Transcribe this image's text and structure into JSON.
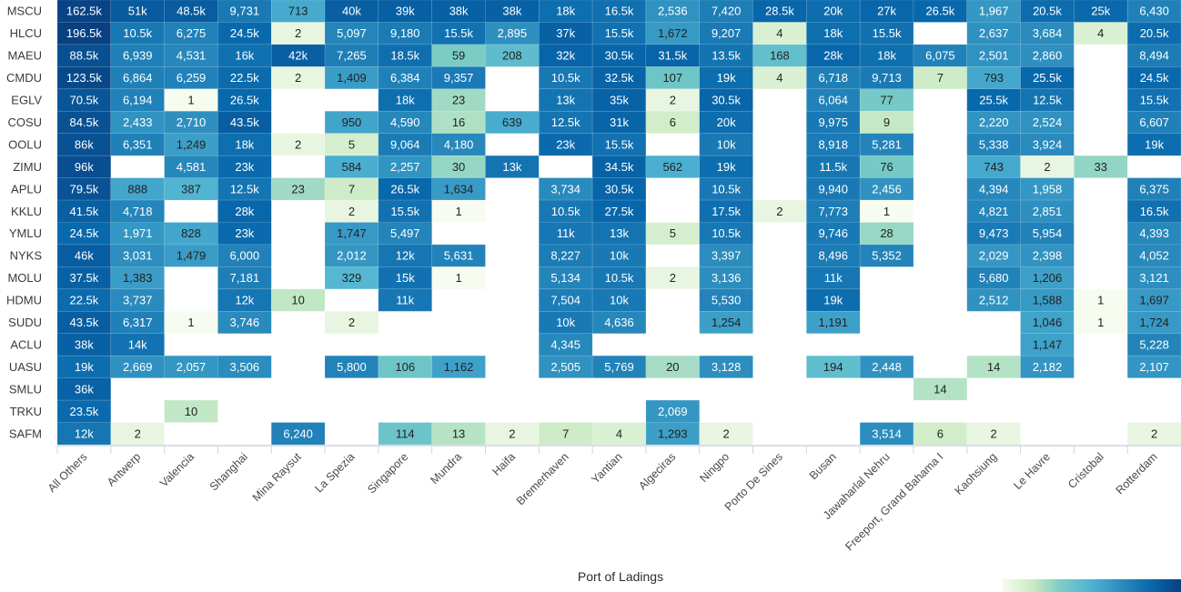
{
  "chart_data": {
    "type": "heatmap",
    "title": "",
    "xlabel": "Port of Ladings",
    "ylabel": "",
    "legend": {
      "type": "color-gradient",
      "placement": "bottom-right",
      "colors": [
        "#f7fcf0",
        "#ccebc5",
        "#7bccc4",
        "#4eb3d3",
        "#2b8cbe",
        "#0868ac",
        "#084081"
      ]
    },
    "columns": [
      "All Others",
      "Antwerp",
      "Valencia",
      "Shanghai",
      "Mina Raysut",
      "La Spezia",
      "Singapore",
      "Mundra",
      "Haifa",
      "Bremerhaven",
      "Yantian",
      "Algeciras",
      "Ningpo",
      "Porto De Sines",
      "Busan",
      "Jawaharlal Nehru",
      "Freeport, Grand Bahama I",
      "Kaohsiung",
      "Le Havre",
      "Cristobal",
      "Rotterdam"
    ],
    "rows": [
      {
        "label": "MSCU",
        "values": [
          "162.5k",
          "51k",
          "48.5k",
          "9,731",
          "713",
          "40k",
          "39k",
          "38k",
          "38k",
          "18k",
          "16.5k",
          "2,536",
          "7,420",
          "28.5k",
          "20k",
          "27k",
          "26.5k",
          "1,967",
          "20.5k",
          "25k",
          "6,430"
        ]
      },
      {
        "label": "HLCU",
        "values": [
          "196.5k",
          "10.5k",
          "6,275",
          "24.5k",
          "2",
          "5,097",
          "9,180",
          "15.5k",
          "2,895",
          "37k",
          "15.5k",
          "1,672",
          "9,207",
          "4",
          "18k",
          "15.5k",
          "",
          "2,637",
          "3,684",
          "4",
          "20.5k"
        ]
      },
      {
        "label": "MAEU",
        "values": [
          "88.5k",
          "6,939",
          "4,531",
          "16k",
          "42k",
          "7,265",
          "18.5k",
          "59",
          "208",
          "32k",
          "30.5k",
          "31.5k",
          "13.5k",
          "168",
          "28k",
          "18k",
          "6,075",
          "2,501",
          "2,860",
          "",
          "8,494"
        ]
      },
      {
        "label": "CMDU",
        "values": [
          "123.5k",
          "6,864",
          "6,259",
          "22.5k",
          "2",
          "1,409",
          "6,384",
          "9,357",
          "",
          "10.5k",
          "32.5k",
          "107",
          "19k",
          "4",
          "6,718",
          "9,713",
          "7",
          "793",
          "25.5k",
          "",
          "24.5k"
        ]
      },
      {
        "label": "EGLV",
        "values": [
          "70.5k",
          "6,194",
          "1",
          "26.5k",
          "",
          "",
          "18k",
          "23",
          "",
          "13k",
          "35k",
          "2",
          "30.5k",
          "",
          "6,064",
          "77",
          "",
          "25.5k",
          "12.5k",
          "",
          "15.5k"
        ]
      },
      {
        "label": "COSU",
        "values": [
          "84.5k",
          "2,433",
          "2,710",
          "43.5k",
          "",
          "950",
          "4,590",
          "16",
          "639",
          "12.5k",
          "31k",
          "6",
          "20k",
          "",
          "9,975",
          "9",
          "",
          "2,220",
          "2,524",
          "",
          "6,607"
        ]
      },
      {
        "label": "OOLU",
        "values": [
          "86k",
          "6,351",
          "1,249",
          "18k",
          "2",
          "5",
          "9,064",
          "4,180",
          "",
          "23k",
          "15.5k",
          "",
          "10k",
          "",
          "8,918",
          "5,281",
          "",
          "5,338",
          "3,924",
          "",
          "19k"
        ]
      },
      {
        "label": "ZIMU",
        "values": [
          "96k",
          "",
          "4,581",
          "23k",
          "",
          "584",
          "2,257",
          "30",
          "13k",
          "",
          "34.5k",
          "562",
          "19k",
          "",
          "11.5k",
          "76",
          "",
          "743",
          "2",
          "33",
          ""
        ]
      },
      {
        "label": "APLU",
        "values": [
          "79.5k",
          "888",
          "387",
          "12.5k",
          "23",
          "7",
          "26.5k",
          "1,634",
          "",
          "3,734",
          "30.5k",
          "",
          "10.5k",
          "",
          "9,940",
          "2,456",
          "",
          "4,394",
          "1,958",
          "",
          "6,375"
        ]
      },
      {
        "label": "KKLU",
        "values": [
          "41.5k",
          "4,718",
          "",
          "28k",
          "",
          "2",
          "15.5k",
          "1",
          "",
          "10.5k",
          "27.5k",
          "",
          "17.5k",
          "2",
          "7,773",
          "1",
          "",
          "4,821",
          "2,851",
          "",
          "16.5k"
        ]
      },
      {
        "label": "YMLU",
        "values": [
          "24.5k",
          "1,971",
          "828",
          "23k",
          "",
          "1,747",
          "5,497",
          "",
          "",
          "11k",
          "13k",
          "5",
          "10.5k",
          "",
          "9,746",
          "28",
          "",
          "9,473",
          "5,954",
          "",
          "4,393"
        ]
      },
      {
        "label": "NYKS",
        "values": [
          "46k",
          "3,031",
          "1,479",
          "6,000",
          "",
          "2,012",
          "12k",
          "5,631",
          "",
          "8,227",
          "10k",
          "",
          "3,397",
          "",
          "8,496",
          "5,352",
          "",
          "2,029",
          "2,398",
          "",
          "4,052"
        ]
      },
      {
        "label": "MOLU",
        "values": [
          "37.5k",
          "1,383",
          "",
          "7,181",
          "",
          "329",
          "15k",
          "1",
          "",
          "5,134",
          "10.5k",
          "2",
          "3,136",
          "",
          "11k",
          "",
          "",
          "5,680",
          "1,206",
          "",
          "3,121"
        ]
      },
      {
        "label": "HDMU",
        "values": [
          "22.5k",
          "3,737",
          "",
          "12k",
          "10",
          "",
          "11k",
          "",
          "",
          "7,504",
          "10k",
          "",
          "5,530",
          "",
          "19k",
          "",
          "",
          "2,512",
          "1,588",
          "1",
          "1,697"
        ]
      },
      {
        "label": "SUDU",
        "values": [
          "43.5k",
          "6,317",
          "1",
          "3,746",
          "",
          "2",
          "",
          "",
          "",
          "10k",
          "4,636",
          "",
          "1,254",
          "",
          "1,191",
          "",
          "",
          "",
          "1,046",
          "1",
          "1,724"
        ]
      },
      {
        "label": "ACLU",
        "values": [
          "38k",
          "14k",
          "",
          "",
          "",
          "",
          "",
          "",
          "",
          "4,345",
          "",
          "",
          "",
          "",
          "",
          "",
          "",
          "",
          "1,147",
          "",
          "5,228"
        ]
      },
      {
        "label": "UASU",
        "values": [
          "19k",
          "2,669",
          "2,057",
          "3,506",
          "",
          "5,800",
          "106",
          "1,162",
          "",
          "2,505",
          "5,769",
          "20",
          "3,128",
          "",
          "194",
          "2,448",
          "",
          "14",
          "2,182",
          "",
          "2,107"
        ]
      },
      {
        "label": "SMLU",
        "values": [
          "36k",
          "",
          "",
          "",
          "",
          "",
          "",
          "",
          "",
          "",
          "",
          "",
          "",
          "",
          "",
          "",
          "14",
          "",
          "",
          "",
          ""
        ]
      },
      {
        "label": "TRKU",
        "values": [
          "23.5k",
          "",
          "10",
          "",
          "",
          "",
          "",
          "",
          "",
          "",
          "",
          "2,069",
          "",
          "",
          "",
          "",
          "",
          "",
          "",
          "",
          ""
        ]
      },
      {
        "label": "SAFM",
        "values": [
          "12k",
          "2",
          "",
          "",
          "6,240",
          "",
          "114",
          "13",
          "2",
          "7",
          "4",
          "1,293",
          "2",
          "",
          "",
          "3,514",
          "6",
          "2",
          "",
          "",
          "2"
        ]
      }
    ]
  }
}
